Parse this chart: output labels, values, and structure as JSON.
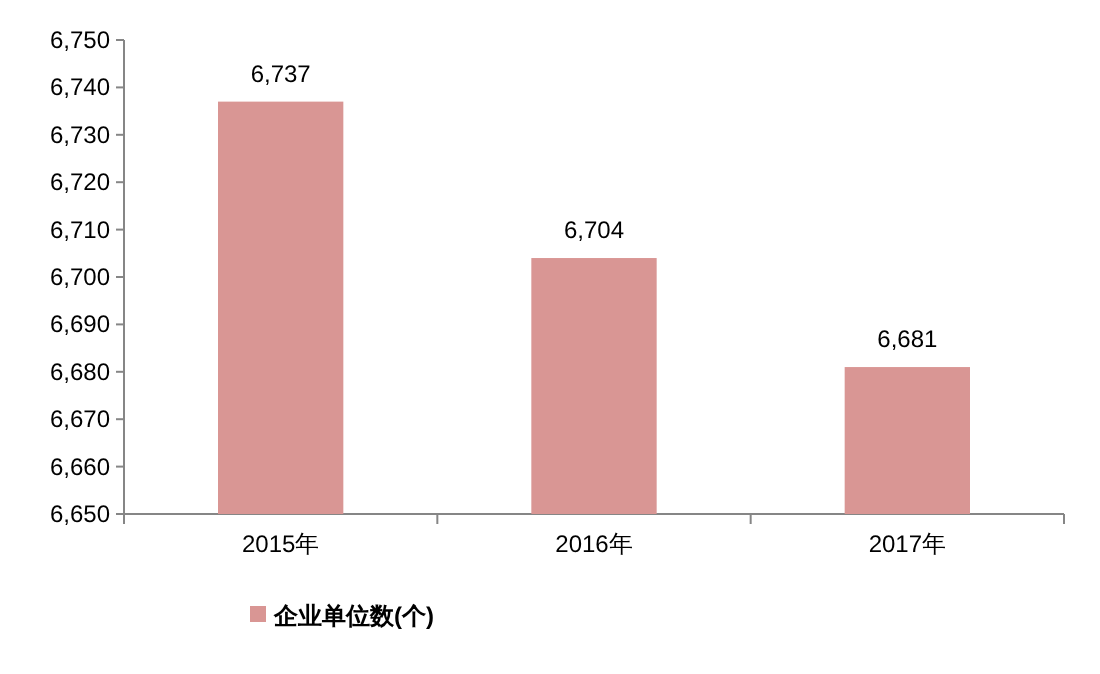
{
  "chart_data": {
    "type": "bar",
    "categories": [
      "2015年",
      "2016年",
      "2017年"
    ],
    "series": [
      {
        "name": "企业单位数(个)",
        "color": "#d99694",
        "values": [
          6737,
          6704,
          6681
        ]
      }
    ],
    "ylim": [
      6650,
      6750
    ],
    "yticks": [
      {
        "value": 6650,
        "label": "6,650"
      },
      {
        "value": 6660,
        "label": "6,660"
      },
      {
        "value": 6670,
        "label": "6,670"
      },
      {
        "value": 6680,
        "label": "6,680"
      },
      {
        "value": 6690,
        "label": "6,690"
      },
      {
        "value": 6700,
        "label": "6,700"
      },
      {
        "value": 6710,
        "label": "6,710"
      },
      {
        "value": 6720,
        "label": "6,720"
      },
      {
        "value": 6730,
        "label": "6,730"
      },
      {
        "value": 6740,
        "label": "6,740"
      },
      {
        "value": 6750,
        "label": "6,750"
      }
    ],
    "value_labels": [
      "6,737",
      "6,704",
      "6,681"
    ],
    "legend": "bottom left"
  }
}
